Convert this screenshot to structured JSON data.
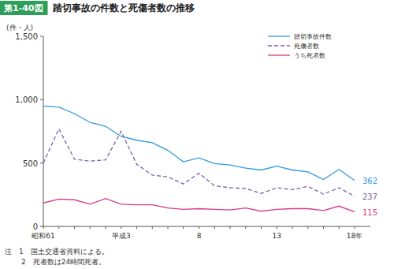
{
  "chart_data": {
    "type": "line",
    "figure_label": "第1-40図",
    "title": "踏切事故の件数と死傷者数の推移",
    "y_label": "(件・人)",
    "notes": [
      "注　1　国土交通省資料による。",
      "2　死者数は24時間死者。"
    ],
    "categories": [
      "昭和61",
      null,
      null,
      null,
      null,
      "平成3",
      null,
      null,
      null,
      null,
      "8",
      null,
      null,
      null,
      null,
      "13",
      null,
      null,
      null,
      null,
      "18年"
    ],
    "ylim": [
      0,
      1500
    ],
    "yticks": [
      0,
      500,
      {
        "value": 1000,
        "label": "1,000"
      },
      {
        "value": 1500,
        "label": "1,500"
      }
    ],
    "grid": false,
    "legend": "upper right",
    "series": [
      {
        "name": "踏切事故件数",
        "color": "#2f9be0",
        "line_style": "solid",
        "values": [
          950,
          940,
          890,
          820,
          790,
          710,
          680,
          660,
          600,
          510,
          540,
          495,
          485,
          460,
          445,
          475,
          445,
          430,
          370,
          450,
          362
        ],
        "value_labels": [
          null,
          null,
          null,
          null,
          null,
          null,
          null,
          null,
          null,
          null,
          null,
          null,
          null,
          null,
          null,
          null,
          null,
          null,
          null,
          null,
          "362"
        ]
      },
      {
        "name": "死傷者数",
        "color": "#7d62a6",
        "line_style": "dashed",
        "values": [
          500,
          770,
          530,
          515,
          525,
          750,
          490,
          405,
          390,
          335,
          420,
          320,
          305,
          300,
          260,
          305,
          290,
          315,
          255,
          305,
          237
        ],
        "value_labels": [
          null,
          null,
          null,
          null,
          null,
          null,
          null,
          null,
          null,
          null,
          null,
          null,
          null,
          null,
          null,
          null,
          null,
          null,
          null,
          null,
          "237"
        ]
      },
      {
        "name": "うち死者数",
        "color": "#d93a86",
        "line_style": "solid",
        "values": [
          185,
          215,
          210,
          175,
          220,
          175,
          170,
          170,
          145,
          135,
          140,
          135,
          130,
          145,
          120,
          135,
          140,
          140,
          125,
          160,
          115
        ],
        "value_labels": [
          null,
          null,
          null,
          null,
          null,
          null,
          null,
          null,
          null,
          null,
          null,
          null,
          null,
          null,
          null,
          null,
          null,
          null,
          null,
          null,
          "115"
        ]
      }
    ]
  }
}
